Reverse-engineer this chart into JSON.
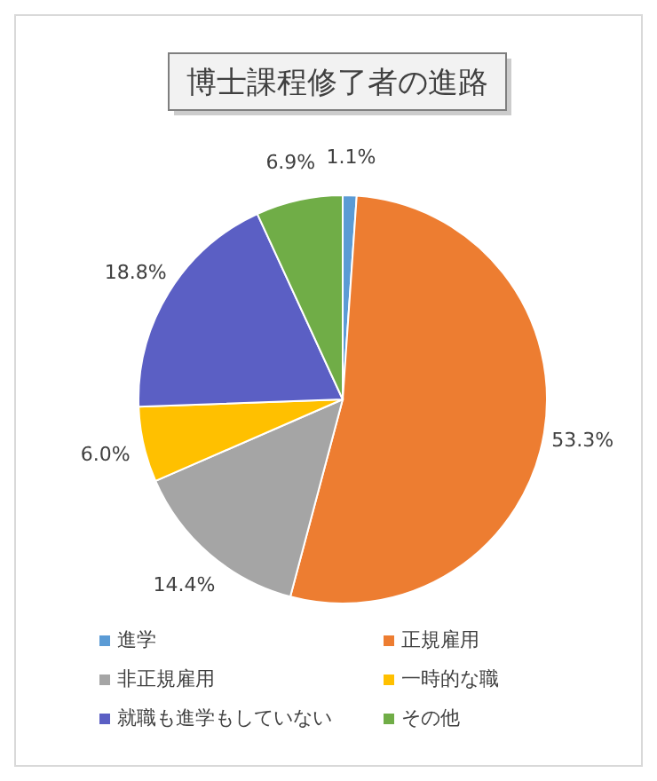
{
  "chart_data": {
    "type": "pie",
    "title": "博士課程修了者の進路",
    "categories": [
      "進学",
      "正規雇用",
      "非正規雇用",
      "一時的な職",
      "就職も進学もしていない",
      "その他"
    ],
    "values": [
      1.1,
      53.3,
      14.4,
      6.0,
      18.8,
      6.9
    ],
    "value_labels": [
      "1.1%",
      "53.3%",
      "14.4%",
      "6.0%",
      "18.8%",
      "6.9%"
    ],
    "colors": [
      "#5b9bd5",
      "#ed7d31",
      "#a5a5a5",
      "#ffc000",
      "#5b5fc4",
      "#70ad47"
    ],
    "legend": "bottom"
  }
}
